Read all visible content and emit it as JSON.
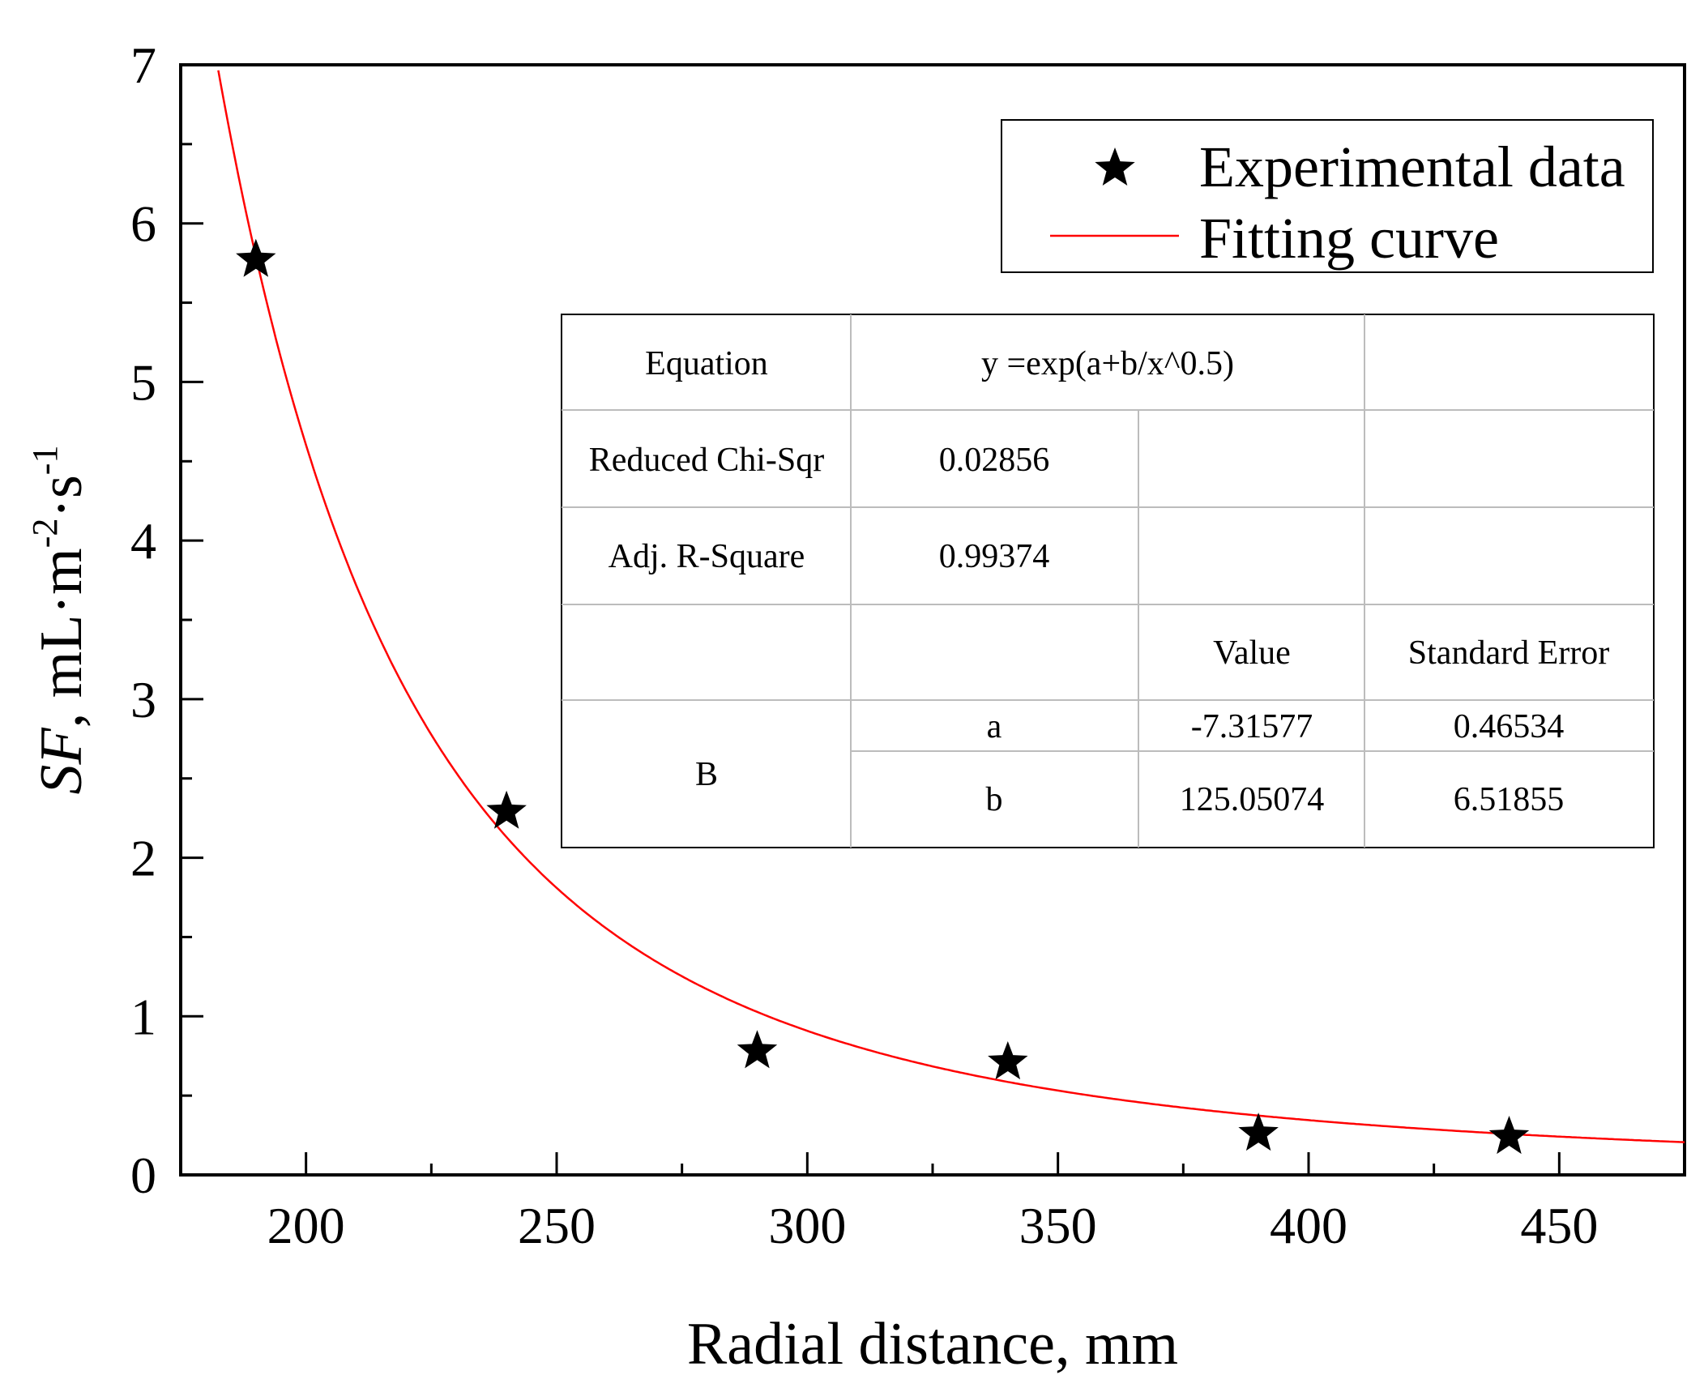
{
  "chart_data": {
    "type": "scatter",
    "xlabel": "Radial distance, mm",
    "ylabel": {
      "prefix": "SF",
      "unit_main": ", mL·m",
      "exp1": "-2",
      "unit_mid": "·s",
      "exp2": "-1"
    },
    "xlim": [
      175,
      475
    ],
    "ylim": [
      0,
      7
    ],
    "x_ticks": [
      "200",
      "250",
      "300",
      "350",
      "400",
      "450"
    ],
    "x_tick_values": [
      200,
      250,
      300,
      350,
      400,
      450
    ],
    "y_ticks": [
      "0",
      "1",
      "2",
      "3",
      "4",
      "5",
      "6",
      "7"
    ],
    "y_tick_values": [
      0,
      1,
      2,
      3,
      4,
      5,
      6,
      7
    ],
    "grid": false,
    "legend_position": "top-right",
    "series": [
      {
        "name": "Experimental data",
        "kind": "scatter",
        "marker": "star",
        "color": "#000000",
        "x": [
          190,
          240,
          290,
          340,
          390,
          440
        ],
        "y": [
          5.77,
          2.29,
          0.78,
          0.71,
          0.26,
          0.24
        ]
      },
      {
        "name": "Fitting curve",
        "kind": "line",
        "color": "#ff0000",
        "equation": "y = exp(a + b / x^0.5)",
        "a": -7.31577,
        "b": 125.05074,
        "x_range": [
          175,
          475
        ]
      }
    ],
    "fit_table": {
      "equation_label": "Equation",
      "equation_value": "y =exp(a+b/x^0.5)",
      "chi_label": "Reduced Chi-Sqr",
      "chi_value": "0.02856",
      "r2_label": "Adj. R-Square",
      "r2_value": "0.99374",
      "value_header": "Value",
      "error_header": "Standard Error",
      "group_label": "B",
      "param_a": "a",
      "param_a_value": "-7.31577",
      "param_a_error": "0.46534",
      "param_b": "b",
      "param_b_value": "125.05074",
      "param_b_error": "6.51855"
    }
  }
}
